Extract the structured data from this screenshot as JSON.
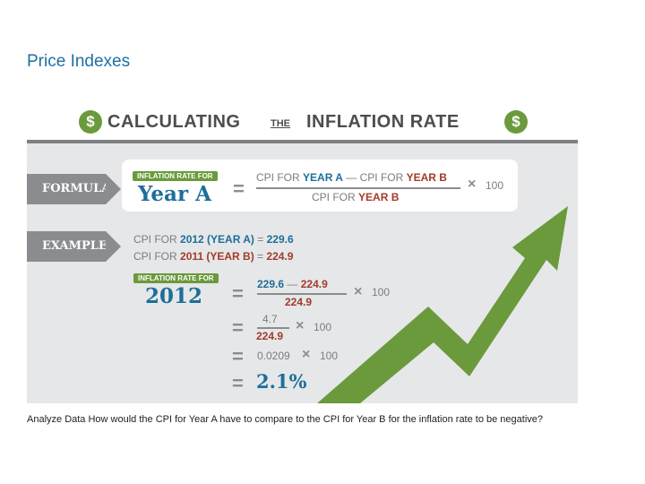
{
  "slide": {
    "title": "Price Indexes",
    "question": "Analyze Data How would the CPI for Year A have to compare to the CPI for Year B for the inflation rate to be negative?"
  },
  "infographic": {
    "header": {
      "left": "CALCULATING",
      "middle": "THE",
      "right": "INFLATION RATE",
      "dollar_symbol": "$"
    },
    "formula": {
      "tag": "FORMULA",
      "pill": "INFLATION RATE FOR",
      "big_label": "Year A",
      "equals": "=",
      "num_a_prefix": "CPI FOR ",
      "num_a_bold": "YEAR A",
      "minus": "—",
      "num_b_prefix": "CPI FOR ",
      "num_b_bold": "YEAR B",
      "den_prefix": "CPI FOR ",
      "den_bold": "YEAR B",
      "times": "×",
      "hundred": "100"
    },
    "example": {
      "tag": "EXAMPLE",
      "line1_prefix": "CPI FOR ",
      "line1_bold": "2012 (YEAR A)",
      "line1_eq": " = ",
      "line1_value": "229.6",
      "line2_prefix": "CPI FOR ",
      "line2_bold": "2011 (YEAR B)",
      "line2_eq": " = ",
      "line2_value": "224.9",
      "pill": "INFLATION RATE FOR",
      "big_label": "2012",
      "step1_num_a": "229.6",
      "step1_minus": "—",
      "step1_num_b": "224.9",
      "step1_den": "224.9",
      "step2_num": "4.7",
      "step2_den": "224.9",
      "step3_value": "0.0209",
      "times": "×",
      "hundred": "100",
      "equals": "=",
      "result": "2.1%"
    },
    "colors": {
      "green": "#6a9a3c",
      "blue": "#1e6e9a",
      "red": "#a33a2a",
      "gray": "#8a8c8f",
      "panel": "#e6e7e8"
    }
  }
}
